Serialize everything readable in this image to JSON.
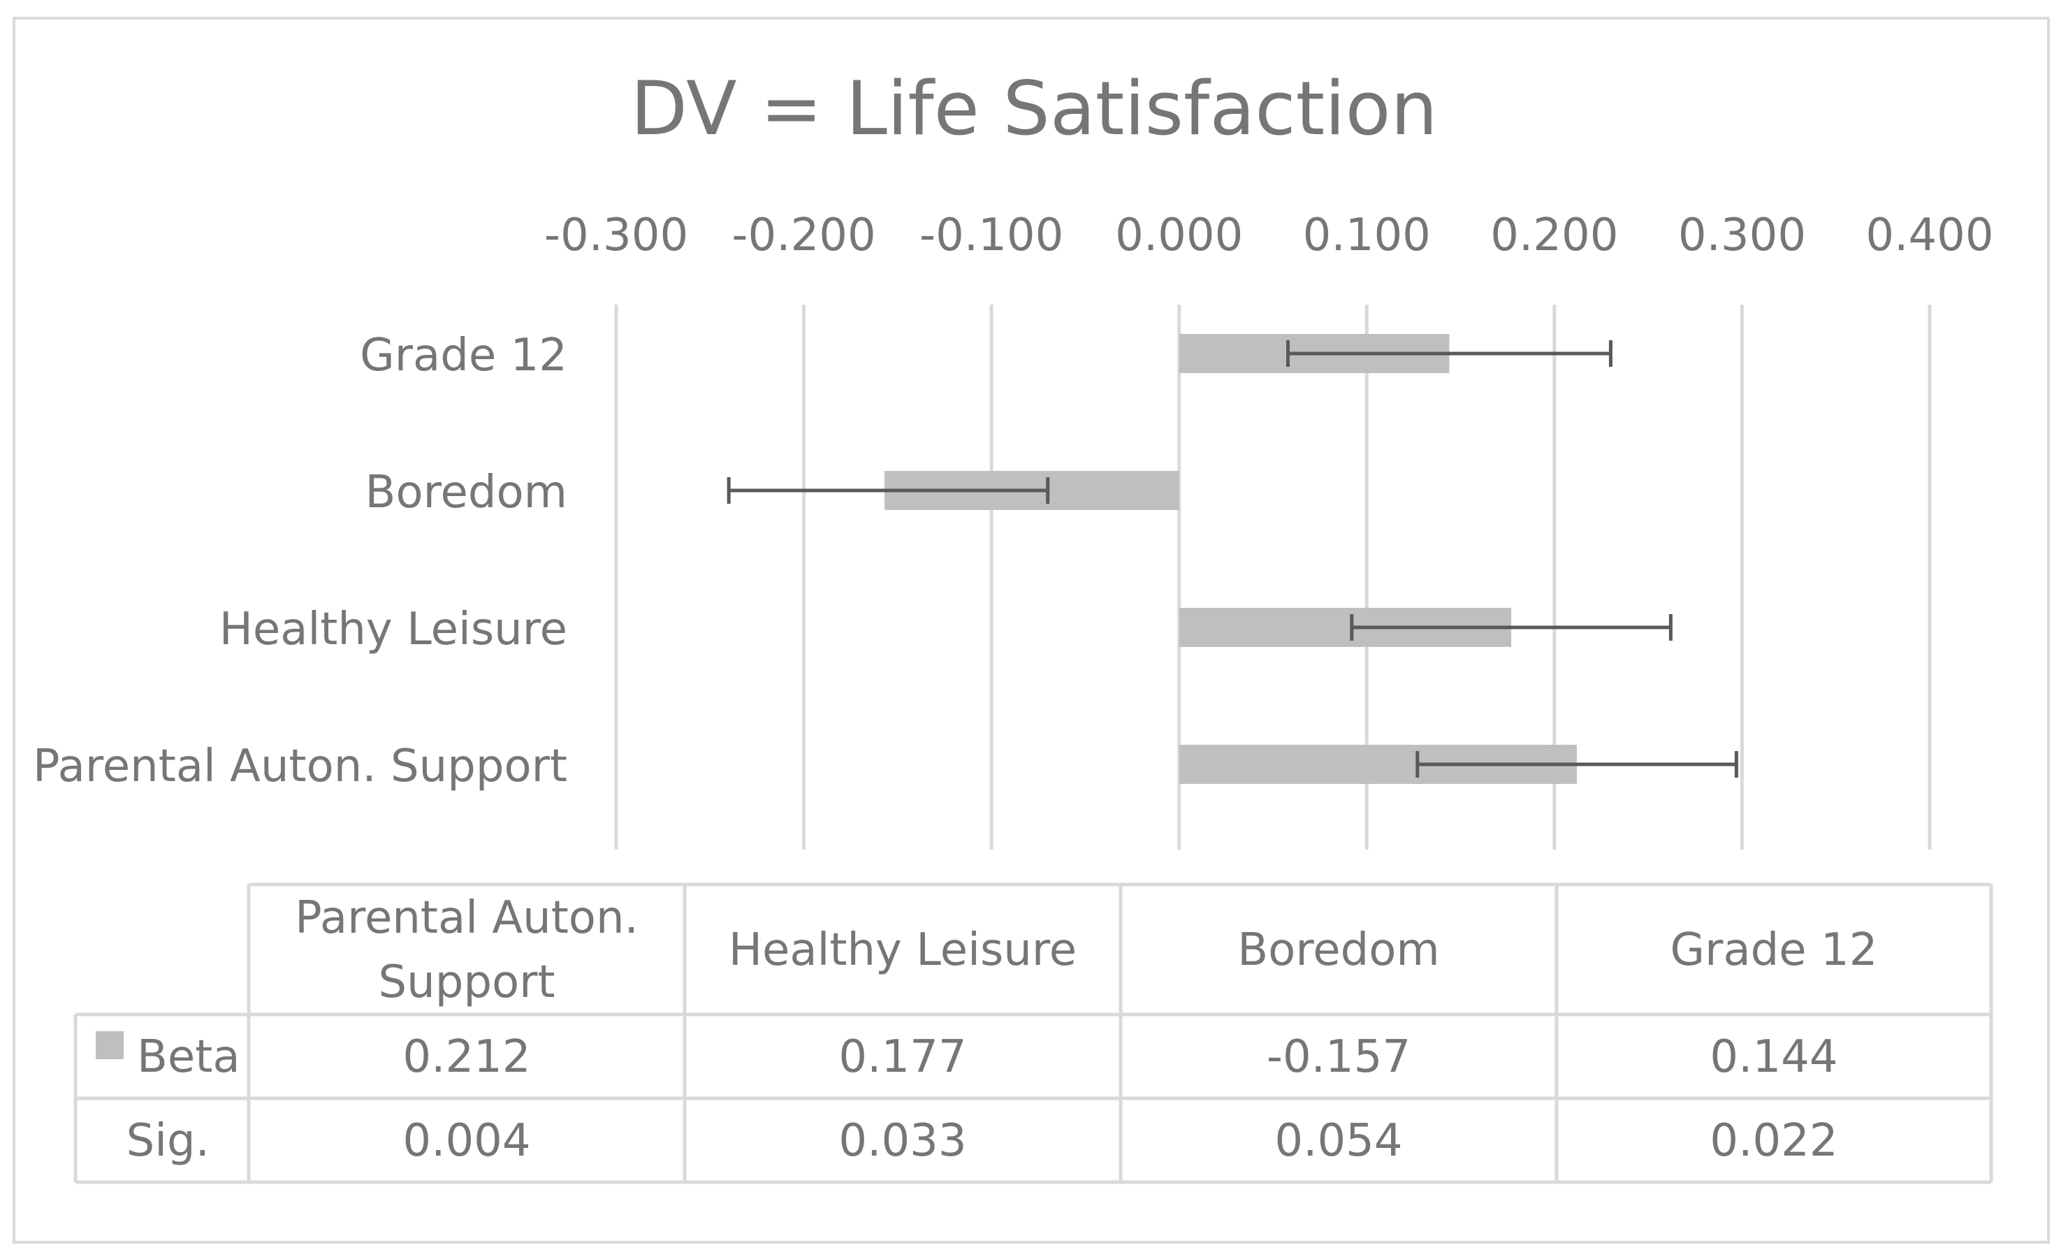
{
  "chart_data": {
    "type": "bar",
    "orientation": "horizontal",
    "title": "DV = Life Satisfaction",
    "xlim": [
      -0.3,
      0.4
    ],
    "xticks": [
      "-0.300",
      "-0.200",
      "-0.100",
      "0.000",
      "0.100",
      "0.200",
      "0.300",
      "0.400"
    ],
    "tick_values": [
      -0.3,
      -0.2,
      -0.1,
      0.0,
      0.1,
      0.2,
      0.3,
      0.4
    ],
    "grid": true,
    "axis_position": "top",
    "categories_top_to_bottom": [
      "Grade 12",
      "Boredom",
      "Healthy Leisure",
      "Parental Auton. Support"
    ],
    "series": [
      {
        "name": "Beta",
        "color": "#bfbfbf",
        "values": [
          0.144,
          -0.157,
          0.177,
          0.212
        ],
        "error_low": [
          0.058,
          -0.24,
          0.092,
          0.127
        ],
        "error_high": [
          0.23,
          -0.07,
          0.262,
          0.297
        ]
      }
    ],
    "table": {
      "columns": [
        "Parental Auton. Support",
        "Healthy Leisure",
        "Boredom",
        "Grade 12"
      ],
      "column_lines": [
        [
          "Parental Auton.",
          "Support"
        ],
        [
          "Healthy Leisure"
        ],
        [
          "Boredom"
        ],
        [
          "Grade 12"
        ]
      ],
      "rows": [
        {
          "label": "Beta",
          "legend_swatch": true,
          "values": [
            "0.212",
            "0.177",
            "-0.157",
            "0.144"
          ]
        },
        {
          "label": "Sig.",
          "legend_swatch": false,
          "values": [
            "0.004",
            "0.033",
            "0.054",
            "0.022"
          ]
        }
      ]
    }
  }
}
